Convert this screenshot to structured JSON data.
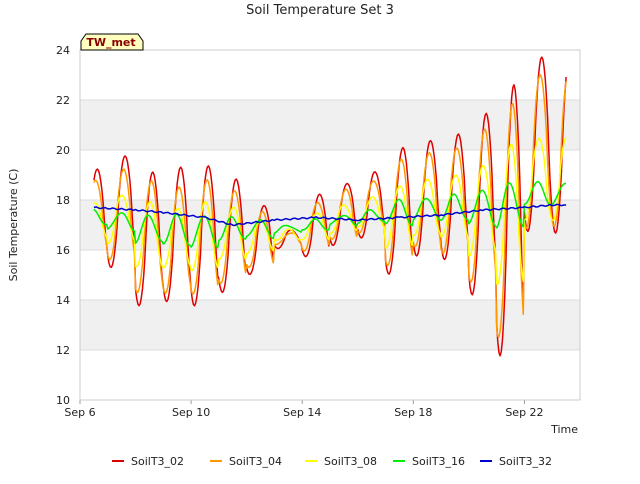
{
  "chart_data": {
    "type": "line",
    "title": "Soil Temperature Set 3",
    "badge": "TW_met",
    "xlabel": "Time",
    "ylabel": "Soil Temperature (C)",
    "ylim": [
      10,
      24
    ],
    "yticks": [
      10,
      12,
      14,
      16,
      18,
      20,
      22,
      24
    ],
    "xlim": [
      "2023-09-06",
      "2023-09-24"
    ],
    "xticks": [
      {
        "date": "2023-09-06",
        "label": "Sep 6"
      },
      {
        "date": "2023-09-10",
        "label": "Sep 10"
      },
      {
        "date": "2023-09-14",
        "label": "Sep 14"
      },
      {
        "date": "2023-09-18",
        "label": "Sep 18"
      },
      {
        "date": "2023-09-22",
        "label": "Sep 22"
      }
    ],
    "background_bands": "alternating grey bands between y ticks",
    "legend_position": "bottom",
    "series": [
      {
        "name": "SoilT3_02",
        "color": "#dd0000",
        "daily_max": [
          19.2,
          19.8,
          19.1,
          19.3,
          19.4,
          18.8,
          17.8,
          16.8,
          18.2,
          18.7,
          19.1,
          20.1,
          20.4,
          20.6,
          21.5,
          22.6,
          23.7
        ],
        "daily_min": [
          15.5,
          15.3,
          13.8,
          13.9,
          13.8,
          14.3,
          15.0,
          16.1,
          15.7,
          16.2,
          16.5,
          15.0,
          15.8,
          15.6,
          14.2,
          11.8,
          16.7
        ]
      },
      {
        "name": "SoilT3_04",
        "color": "#ff9900",
        "daily_max": [
          18.8,
          19.2,
          18.8,
          18.5,
          18.8,
          18.4,
          17.5,
          16.7,
          17.9,
          18.4,
          18.8,
          19.6,
          19.9,
          20.1,
          20.8,
          21.9,
          23.0
        ],
        "daily_min": [
          15.9,
          15.6,
          14.3,
          14.3,
          14.2,
          14.7,
          15.3,
          16.2,
          16.0,
          16.4,
          16.7,
          15.4,
          16.1,
          15.9,
          14.7,
          12.5,
          16.9
        ]
      },
      {
        "name": "SoilT3_08",
        "color": "#ffff00",
        "daily_max": [
          17.9,
          18.2,
          17.9,
          17.7,
          17.9,
          17.7,
          17.2,
          16.8,
          17.5,
          17.8,
          18.1,
          18.6,
          18.8,
          19.0,
          19.4,
          20.2,
          20.5
        ],
        "daily_min": [
          16.5,
          16.3,
          15.3,
          15.3,
          15.2,
          15.6,
          15.9,
          16.4,
          16.4,
          16.7,
          16.9,
          16.1,
          16.6,
          16.5,
          15.8,
          14.6,
          17.2
        ]
      },
      {
        "name": "SoilT3_16",
        "color": "#00ee00",
        "daily_max": [
          17.6,
          17.5,
          17.4,
          17.4,
          17.4,
          17.3,
          17.2,
          17.0,
          17.2,
          17.4,
          17.6,
          18.0,
          18.1,
          18.2,
          18.4,
          18.7,
          18.7
        ],
        "daily_min": [
          17.0,
          16.8,
          16.3,
          16.2,
          16.1,
          16.4,
          16.5,
          16.7,
          16.8,
          17.0,
          17.1,
          17.0,
          17.2,
          17.2,
          17.0,
          16.9,
          17.8
        ]
      },
      {
        "name": "SoilT3_32",
        "color": "#0000cc",
        "x": [
          "2023-09-06 12:00",
          "2023-09-08 00:00",
          "2023-09-09 00:00",
          "2023-09-10 12:00",
          "2023-09-11 12:00",
          "2023-09-13 00:00",
          "2023-09-14 12:00",
          "2023-09-16 00:00",
          "2023-09-17 12:00",
          "2023-09-19 00:00",
          "2023-09-20 12:00",
          "2023-09-22 00:00",
          "2023-09-23 00:00",
          "2023-09-23 12:00"
        ],
        "y": [
          17.7,
          17.6,
          17.5,
          17.3,
          17.0,
          17.2,
          17.3,
          17.2,
          17.3,
          17.4,
          17.6,
          17.7,
          17.8,
          17.8
        ]
      }
    ]
  }
}
